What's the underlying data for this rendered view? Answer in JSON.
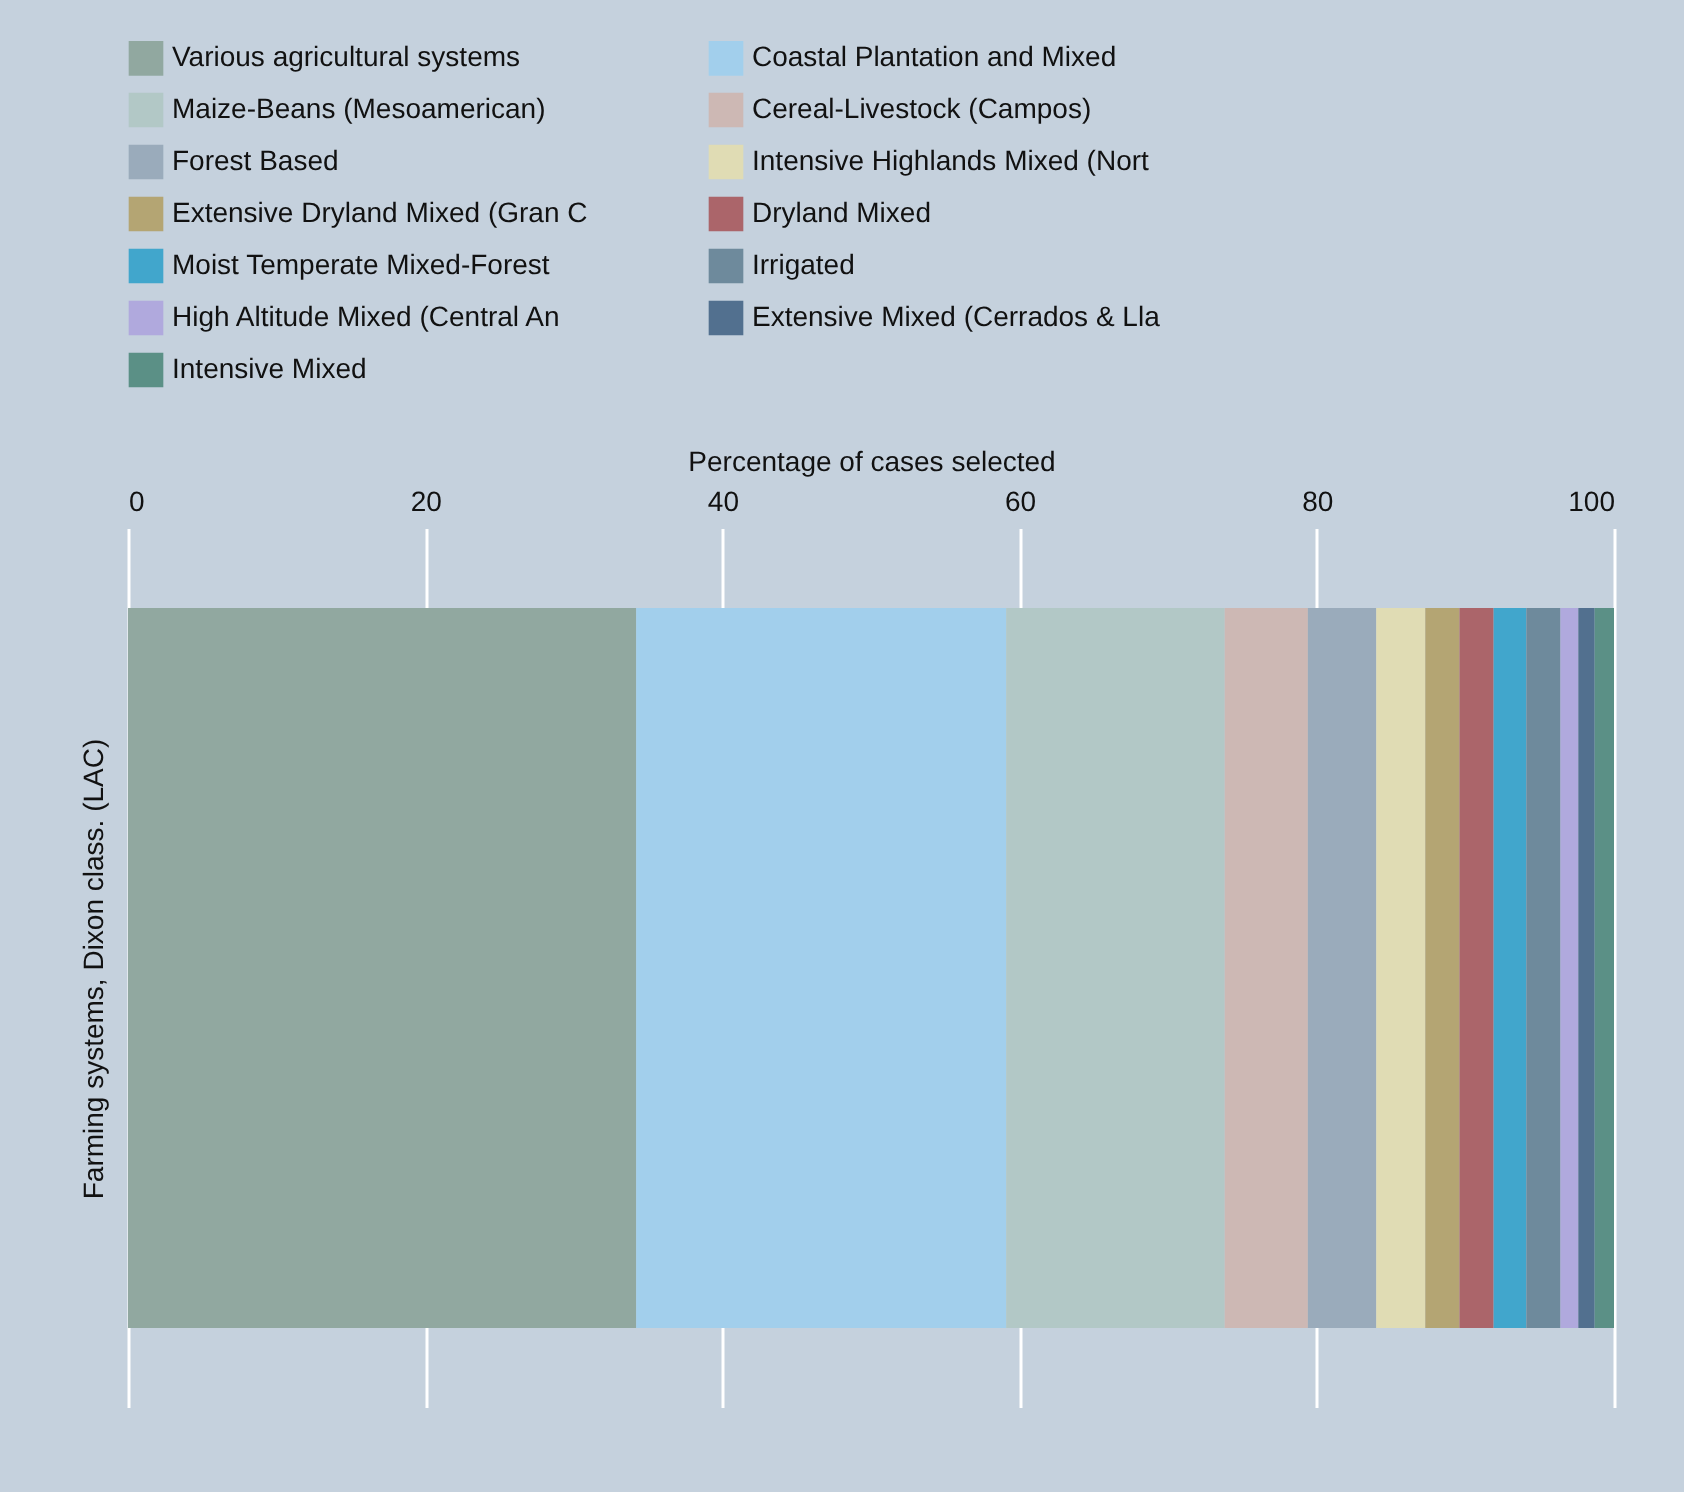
{
  "chart_data": {
    "type": "bar",
    "orientation": "horizontal",
    "stacked": true,
    "xlabel": "Percentage of cases selected",
    "ylabel": "Farming systems, Dixon class. (LAC)",
    "categories": [
      null
    ],
    "series": [
      {
        "name": "Various agricultural systems",
        "color": "#91a8a0",
        "values": [
          34.2
        ]
      },
      {
        "name": "Coastal Plantation and Mixed",
        "color": "#a2cfec",
        "values": [
          24.9
        ]
      },
      {
        "name": "Maize-Beans (Mesoamerican)",
        "color": "#b2c8c6",
        "values": [
          14.7
        ]
      },
      {
        "name": "Cereal-Livestock  (Campos)",
        "color": "#cdb8b4",
        "values": [
          5.6
        ]
      },
      {
        "name": "Forest Based",
        "color": "#9aabbb",
        "values": [
          4.6
        ]
      },
      {
        "name": "Intensive Highlands Mixed (Nort",
        "color": "#e0dcb4",
        "values": [
          3.3
        ]
      },
      {
        "name": "Extensive Dryland Mixed (Gran C",
        "color": "#b4a573",
        "values": [
          2.3
        ]
      },
      {
        "name": "Dryland Mixed",
        "color": "#ab656a",
        "values": [
          2.3
        ]
      },
      {
        "name": "Moist Temperate Mixed-Forest",
        "color": "#41a6cc",
        "values": [
          2.2
        ]
      },
      {
        "name": "Irrigated",
        "color": "#6e8a9c",
        "values": [
          2.3
        ]
      },
      {
        "name": "High Altitude Mixed (Central An",
        "color": "#b0a9dd",
        "values": [
          1.2
        ]
      },
      {
        "name": "Extensive Mixed (Cerrados & Lla",
        "color": "#52708f",
        "values": [
          1.1
        ]
      },
      {
        "name": "Intensive Mixed",
        "color": "#5b9086",
        "values": [
          1.3
        ]
      }
    ],
    "xlim": [
      0,
      100
    ],
    "xticks": [
      0,
      20,
      40,
      60,
      80,
      100
    ],
    "grid": "x",
    "legend": "top",
    "tick_labels": "x"
  }
}
